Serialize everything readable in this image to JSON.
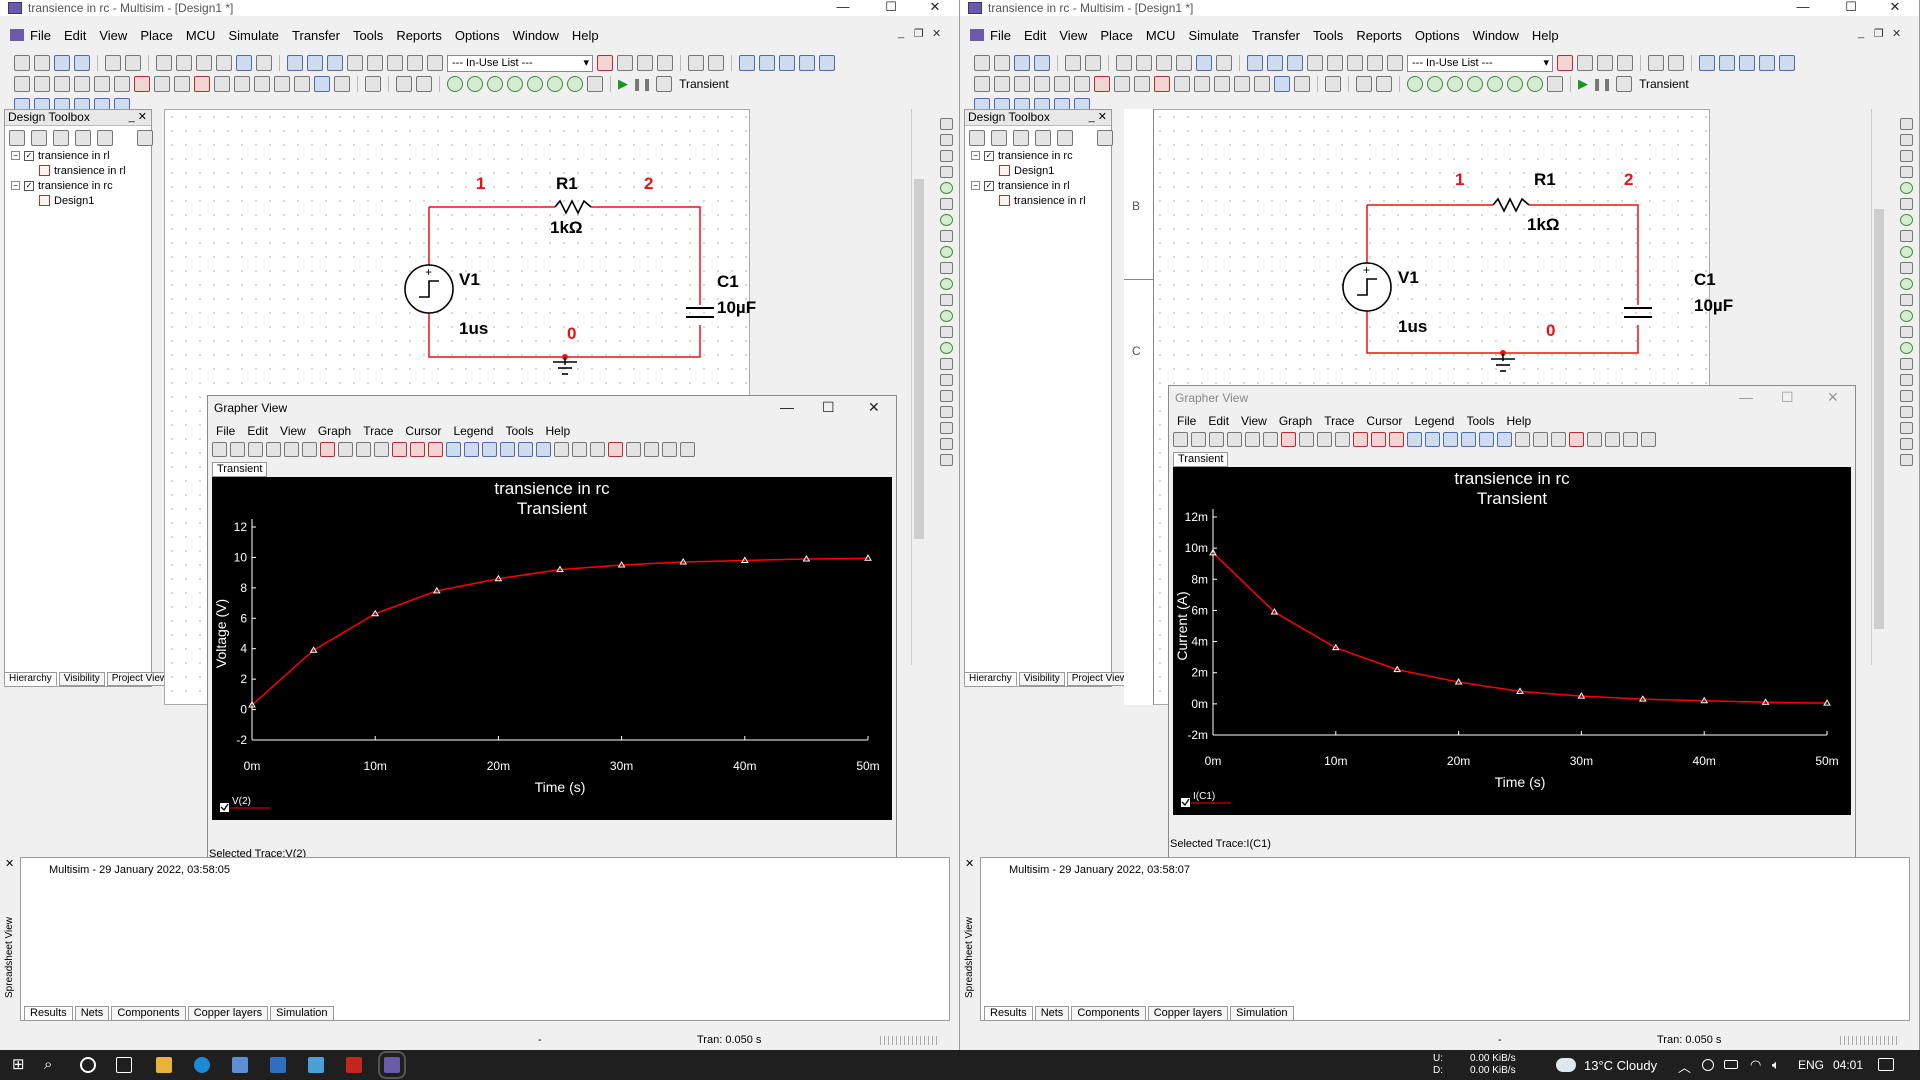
{
  "windows": [
    {
      "id": "left",
      "title": "transience in rc - Multisim - [Design1 *]",
      "menu": [
        "File",
        "Edit",
        "View",
        "Place",
        "MCU",
        "Simulate",
        "Transfer",
        "Tools",
        "Reports",
        "Options",
        "Window",
        "Help"
      ],
      "inuse_list": "--- In-Use List ---",
      "sim_mode": "Transient",
      "toolbox": {
        "title": "Design Toolbox",
        "tree": [
          {
            "label": "transience in rl",
            "level": 0
          },
          {
            "label": "transience in rl",
            "level": 1
          },
          {
            "label": "transience in rc",
            "level": 0
          },
          {
            "label": "Design1",
            "level": 1
          }
        ],
        "tabs": [
          "Hierarchy",
          "Visibility",
          "Project View"
        ]
      },
      "circuit": {
        "r_name": "R1",
        "r_value": "1kΩ",
        "c_name": "C1",
        "c_value": "10µF",
        "v_name": "V1",
        "v_value": "1us",
        "node_1": "1",
        "node_2": "2",
        "node_0": "0"
      },
      "grapher": {
        "title": "Grapher View",
        "menu": [
          "File",
          "Edit",
          "View",
          "Graph",
          "Trace",
          "Cursor",
          "Legend",
          "Tools",
          "Help"
        ],
        "tab": "Transient",
        "status": "Selected Trace:V(2)"
      },
      "log": "Multisim  -  29 January 2022, 03:58:05",
      "spreadsheet_label": "Spreadsheet View",
      "result_tabs": [
        "Results",
        "Nets",
        "Components",
        "Copper layers",
        "Simulation"
      ],
      "status_dash": "-",
      "status_tran": "Tran: 0.050 s"
    },
    {
      "id": "right",
      "title": "transience in rc - Multisim - [Design1 *]",
      "menu": [
        "File",
        "Edit",
        "View",
        "Place",
        "MCU",
        "Simulate",
        "Transfer",
        "Tools",
        "Reports",
        "Options",
        "Window",
        "Help"
      ],
      "inuse_list": "--- In-Use List ---",
      "sim_mode": "Transient",
      "toolbox": {
        "title": "Design Toolbox",
        "tree": [
          {
            "label": "transience in rc",
            "level": 0
          },
          {
            "label": "Design1",
            "level": 1
          },
          {
            "label": "transience in rl",
            "level": 0
          },
          {
            "label": "transience in rl",
            "level": 1
          }
        ],
        "tabs": [
          "Hierarchy",
          "Visibility",
          "Project View"
        ]
      },
      "circuit": {
        "r_name": "R1",
        "r_value": "1kΩ",
        "c_name": "C1",
        "c_value": "10µF",
        "v_name": "V1",
        "v_value": "1us",
        "node_1": "1",
        "node_2": "2",
        "node_0": "0"
      },
      "border_labels": [
        "B",
        "C"
      ],
      "grapher": {
        "title": "Grapher View",
        "menu": [
          "File",
          "Edit",
          "View",
          "Graph",
          "Trace",
          "Cursor",
          "Legend",
          "Tools",
          "Help"
        ],
        "tab": "Transient",
        "status": "Selected Trace:I(C1)"
      },
      "log": "Multisim  -  29 January 2022, 03:58:07",
      "spreadsheet_label": "Spreadsheet View",
      "result_tabs": [
        "Results",
        "Nets",
        "Components",
        "Copper layers",
        "Simulation"
      ],
      "status_dash": "-",
      "status_tran": "Tran: 0.050 s"
    }
  ],
  "chart_data": [
    {
      "type": "line",
      "title": "transience in rc",
      "subtitle": "Transient",
      "xlabel": "Time (s)",
      "ylabel": "Voltage (V)",
      "xlim": [
        0,
        50
      ],
      "ylim": [
        -2,
        12
      ],
      "x_tick_values": [
        0,
        10,
        20,
        30,
        40,
        50
      ],
      "x_tick_labels": [
        "0m",
        "10m",
        "20m",
        "30m",
        "40m",
        "50m"
      ],
      "y_tick_values": [
        -2,
        0,
        2,
        4,
        6,
        8,
        10,
        12
      ],
      "y_tick_labels": [
        "-2",
        "0",
        "2",
        "4",
        "6",
        "8",
        "10",
        "12"
      ],
      "background": "#000000",
      "series": [
        {
          "name": "V(2)",
          "color": "#ff0000",
          "x": [
            0,
            5,
            10,
            15,
            20,
            25,
            30,
            35,
            40,
            45,
            50
          ],
          "y": [
            0.3,
            3.9,
            6.3,
            7.8,
            8.6,
            9.2,
            9.5,
            9.7,
            9.8,
            9.9,
            9.95
          ]
        }
      ]
    },
    {
      "type": "line",
      "title": "transience in rc",
      "subtitle": "Transient",
      "xlabel": "Time (s)",
      "ylabel": "Current (A)",
      "xlim": [
        0,
        50
      ],
      "ylim": [
        -2,
        12
      ],
      "x_tick_values": [
        0,
        10,
        20,
        30,
        40,
        50
      ],
      "x_tick_labels": [
        "0m",
        "10m",
        "20m",
        "30m",
        "40m",
        "50m"
      ],
      "y_tick_values": [
        -2,
        0,
        2,
        4,
        6,
        8,
        10,
        12
      ],
      "y_tick_labels": [
        "-2m",
        "0m",
        "2m",
        "4m",
        "6m",
        "8m",
        "10m",
        "12m"
      ],
      "background": "#000000",
      "series": [
        {
          "name": "I(C1)",
          "color": "#ff0000",
          "x": [
            0,
            5,
            10,
            15,
            20,
            25,
            30,
            35,
            40,
            45,
            50
          ],
          "y": [
            9.7,
            5.9,
            3.6,
            2.2,
            1.4,
            0.8,
            0.5,
            0.3,
            0.2,
            0.1,
            0.05
          ]
        }
      ]
    }
  ],
  "taskbar": {
    "net_up_label": "U:",
    "net_up": "0.00 KiB/s",
    "net_down_label": "D:",
    "net_down": "0.00 KiB/s",
    "weather": "13°C  Cloudy",
    "lang": "ENG",
    "time": "04:01"
  }
}
